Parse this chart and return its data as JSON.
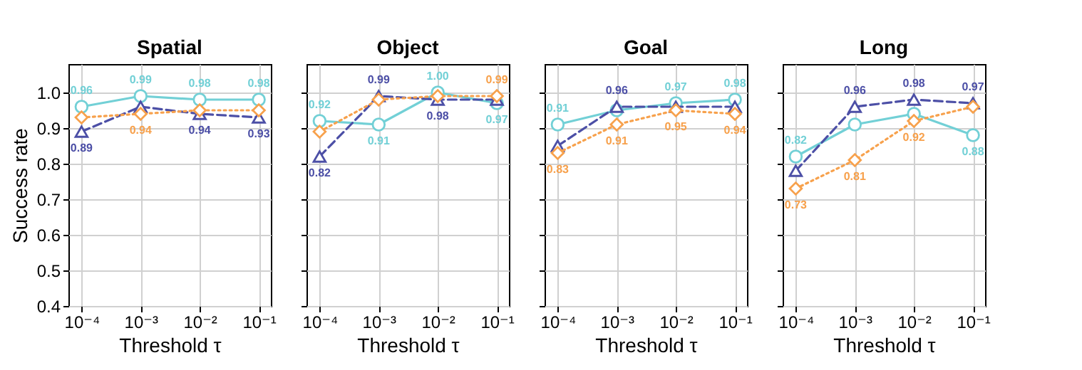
{
  "chart_data": [
    {
      "type": "line",
      "title": "Spatial",
      "xlabel": "Threshold τ",
      "ylabel": "Success rate",
      "log": "x",
      "grid": true,
      "xlim": [
        6e-05,
        0.16
      ],
      "xticks": [
        {
          "value": 0.0001,
          "label": "10⁻⁴"
        },
        {
          "value": 0.001,
          "label": "10⁻³"
        },
        {
          "value": 0.01,
          "label": "10⁻²"
        },
        {
          "value": 0.1,
          "label": "10⁻¹"
        }
      ],
      "ylim": [
        0.4,
        1.08
      ],
      "yticks": [
        0.4,
        0.5,
        0.6,
        0.7,
        0.8,
        0.9,
        {
          "value": 1,
          "label": "1.0"
        }
      ],
      "x": [
        0.0001,
        0.001,
        0.01,
        0.1
      ],
      "series": [
        {
          "color": "#72d0d6",
          "marker": "circle",
          "line_style": "solid",
          "values": [
            0.96,
            0.99,
            0.98,
            0.98
          ],
          "value_labels": [
            "0.96",
            "0.99",
            "0.98",
            "0.98"
          ]
        },
        {
          "color": "#4c4fa6",
          "marker": "triangle",
          "line_style": "dashed",
          "values": [
            0.89,
            0.96,
            0.94,
            0.93
          ],
          "value_labels": [
            "0.89",
            null,
            "0.94",
            "0.93"
          ]
        },
        {
          "color": "#f7a14c",
          "marker": "diamond",
          "line_style": "dotted",
          "values": [
            0.93,
            0.94,
            0.95,
            0.95
          ],
          "value_labels": [
            null,
            "0.94",
            null,
            null
          ]
        }
      ]
    },
    {
      "type": "line",
      "title": "Object",
      "xlabel": "Threshold τ",
      "log": "x",
      "grid": true,
      "tick_labels": "x",
      "xlim": [
        6e-05,
        0.16
      ],
      "xticks": [
        {
          "value": 0.0001,
          "label": "10⁻⁴"
        },
        {
          "value": 0.001,
          "label": "10⁻³"
        },
        {
          "value": 0.01,
          "label": "10⁻²"
        },
        {
          "value": 0.1,
          "label": "10⁻¹"
        }
      ],
      "ylim": [
        0.4,
        1.08
      ],
      "yticks": [
        0.4,
        0.5,
        0.6,
        0.7,
        0.8,
        0.9,
        1
      ],
      "x": [
        0.0001,
        0.001,
        0.01,
        0.1
      ],
      "series": [
        {
          "color": "#72d0d6",
          "marker": "circle",
          "line_style": "solid",
          "values": [
            0.92,
            0.91,
            1.0,
            0.97
          ],
          "value_labels": [
            "0.92",
            "0.91",
            "1.00",
            "0.97"
          ]
        },
        {
          "color": "#4c4fa6",
          "marker": "triangle",
          "line_style": "dashed",
          "values": [
            0.82,
            0.99,
            0.98,
            0.98
          ],
          "value_labels": [
            "0.82",
            "0.99",
            "0.98",
            null
          ]
        },
        {
          "color": "#f7a14c",
          "marker": "diamond",
          "line_style": "dotted",
          "values": [
            0.89,
            0.98,
            0.99,
            0.99
          ],
          "value_labels": [
            null,
            null,
            null,
            "0.99"
          ]
        }
      ]
    },
    {
      "type": "line",
      "title": "Goal",
      "xlabel": "Threshold τ",
      "log": "x",
      "grid": true,
      "tick_labels": "x",
      "xlim": [
        6e-05,
        0.16
      ],
      "xticks": [
        {
          "value": 0.0001,
          "label": "10⁻⁴"
        },
        {
          "value": 0.001,
          "label": "10⁻³"
        },
        {
          "value": 0.01,
          "label": "10⁻²"
        },
        {
          "value": 0.1,
          "label": "10⁻¹"
        }
      ],
      "ylim": [
        0.4,
        1.08
      ],
      "yticks": [
        0.4,
        0.5,
        0.6,
        0.7,
        0.8,
        0.9,
        1
      ],
      "x": [
        0.0001,
        0.001,
        0.01,
        0.1
      ],
      "series": [
        {
          "color": "#72d0d6",
          "marker": "circle",
          "line_style": "solid",
          "values": [
            0.91,
            0.95,
            0.97,
            0.98
          ],
          "value_labels": [
            "0.91",
            null,
            "0.97",
            "0.98"
          ]
        },
        {
          "color": "#4c4fa6",
          "marker": "triangle",
          "line_style": "dashed",
          "values": [
            0.85,
            0.96,
            0.96,
            0.96
          ],
          "value_labels": [
            null,
            "0.96",
            null,
            null
          ]
        },
        {
          "color": "#f7a14c",
          "marker": "diamond",
          "line_style": "dotted",
          "values": [
            0.83,
            0.91,
            0.95,
            0.94
          ],
          "value_labels": [
            "0.83",
            "0.91",
            "0.95",
            "0.94"
          ]
        }
      ]
    },
    {
      "type": "line",
      "title": "Long",
      "xlabel": "Threshold τ",
      "log": "x",
      "grid": true,
      "tick_labels": "x",
      "xlim": [
        6e-05,
        0.16
      ],
      "xticks": [
        {
          "value": 0.0001,
          "label": "10⁻⁴"
        },
        {
          "value": 0.001,
          "label": "10⁻³"
        },
        {
          "value": 0.01,
          "label": "10⁻²"
        },
        {
          "value": 0.1,
          "label": "10⁻¹"
        }
      ],
      "ylim": [
        0.4,
        1.08
      ],
      "yticks": [
        0.4,
        0.5,
        0.6,
        0.7,
        0.8,
        0.9,
        1
      ],
      "x": [
        0.0001,
        0.001,
        0.01,
        0.1
      ],
      "series": [
        {
          "color": "#72d0d6",
          "marker": "circle",
          "line_style": "solid",
          "values": [
            0.82,
            0.91,
            0.94,
            0.88
          ],
          "value_labels": [
            "0.82",
            null,
            null,
            "0.88"
          ]
        },
        {
          "color": "#4c4fa6",
          "marker": "triangle",
          "line_style": "dashed",
          "values": [
            0.78,
            0.96,
            0.98,
            0.97
          ],
          "value_labels": [
            null,
            "0.96",
            "0.98",
            "0.97"
          ]
        },
        {
          "color": "#f7a14c",
          "marker": "diamond",
          "line_style": "dotted",
          "values": [
            0.73,
            0.81,
            0.92,
            0.96
          ],
          "value_labels": [
            "0.73",
            "0.81",
            "0.92",
            null
          ]
        }
      ]
    }
  ]
}
